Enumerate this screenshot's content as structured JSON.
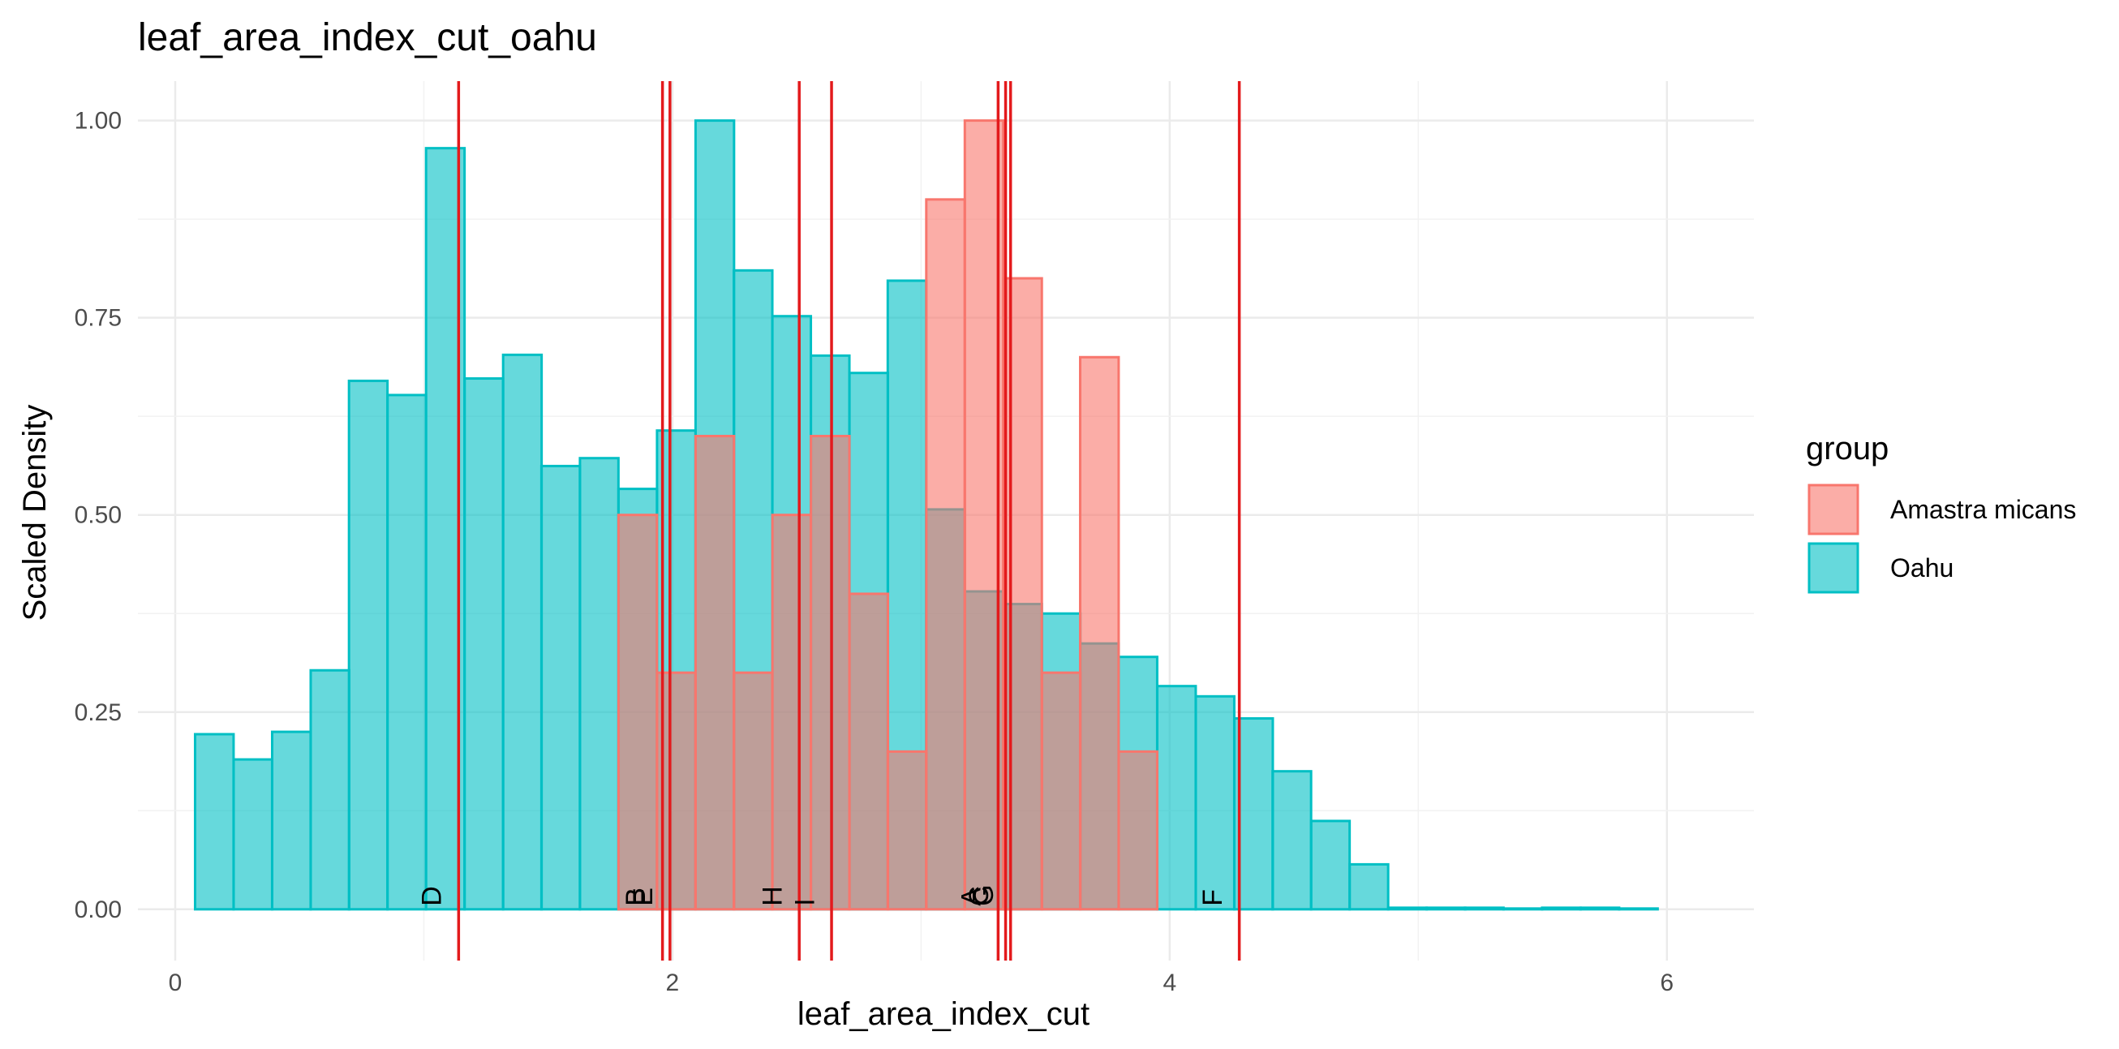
{
  "chart_data": {
    "type": "bar",
    "title": "leaf_area_index_cut_oahu",
    "xlabel": "leaf_area_index_cut",
    "ylabel": "Scaled Density",
    "xlim": [
      -0.15,
      6.35
    ],
    "ylim": [
      -0.065,
      1.05
    ],
    "x_ticks": [
      0,
      2,
      4,
      6
    ],
    "x_tick_labels": [
      "0",
      "2",
      "4",
      "6"
    ],
    "y_ticks": [
      0,
      0.25,
      0.5,
      0.75,
      1.0
    ],
    "y_tick_labels": [
      "0.00",
      "0.25",
      "0.50",
      "0.75",
      "1.00"
    ],
    "grid": true,
    "legend": {
      "title": "group",
      "placement": "right",
      "entries": [
        {
          "label": "Amastra micans",
          "fill": "#F8766D",
          "stroke": "#F8766D"
        },
        {
          "label": "Oahu",
          "fill": "#00BFC4",
          "stroke": "#00BFC4"
        }
      ]
    },
    "bin_width": 0.1548,
    "series": [
      {
        "name": "Oahu",
        "color": "#00BFC4",
        "bins": [
          {
            "x0": 0.08,
            "y": 0.222
          },
          {
            "x0": 0.235,
            "y": 0.19
          },
          {
            "x0": 0.39,
            "y": 0.225
          },
          {
            "x0": 0.545,
            "y": 0.303
          },
          {
            "x0": 0.699,
            "y": 0.67
          },
          {
            "x0": 0.854,
            "y": 0.652
          },
          {
            "x0": 1.009,
            "y": 0.965
          },
          {
            "x0": 1.164,
            "y": 0.673
          },
          {
            "x0": 1.319,
            "y": 0.703
          },
          {
            "x0": 1.473,
            "y": 0.562
          },
          {
            "x0": 1.628,
            "y": 0.572
          },
          {
            "x0": 1.783,
            "y": 0.533
          },
          {
            "x0": 1.938,
            "y": 0.607
          },
          {
            "x0": 2.093,
            "y": 1.0
          },
          {
            "x0": 2.247,
            "y": 0.81
          },
          {
            "x0": 2.402,
            "y": 0.752
          },
          {
            "x0": 2.557,
            "y": 0.702
          },
          {
            "x0": 2.712,
            "y": 0.68
          },
          {
            "x0": 2.866,
            "y": 0.797
          },
          {
            "x0": 3.021,
            "y": 0.507
          },
          {
            "x0": 3.176,
            "y": 0.403
          },
          {
            "x0": 3.331,
            "y": 0.387
          },
          {
            "x0": 3.486,
            "y": 0.375
          },
          {
            "x0": 3.64,
            "y": 0.337
          },
          {
            "x0": 3.795,
            "y": 0.32
          },
          {
            "x0": 3.95,
            "y": 0.283
          },
          {
            "x0": 4.105,
            "y": 0.27
          },
          {
            "x0": 4.26,
            "y": 0.242
          },
          {
            "x0": 4.414,
            "y": 0.175
          },
          {
            "x0": 4.569,
            "y": 0.112
          },
          {
            "x0": 4.724,
            "y": 0.057
          },
          {
            "x0": 4.879,
            "y": 0.002
          },
          {
            "x0": 5.034,
            "y": 0.002
          },
          {
            "x0": 5.188,
            "y": 0.002
          },
          {
            "x0": 5.343,
            "y": 0.001
          },
          {
            "x0": 5.498,
            "y": 0.002
          },
          {
            "x0": 5.653,
            "y": 0.002
          },
          {
            "x0": 5.808,
            "y": 0.001
          }
        ]
      },
      {
        "name": "Amastra micans",
        "color": "#F8766D",
        "bins": [
          {
            "x0": 1.783,
            "y": 0.5
          },
          {
            "x0": 1.938,
            "y": 0.3
          },
          {
            "x0": 2.093,
            "y": 0.6
          },
          {
            "x0": 2.247,
            "y": 0.3
          },
          {
            "x0": 2.402,
            "y": 0.5
          },
          {
            "x0": 2.557,
            "y": 0.6
          },
          {
            "x0": 2.712,
            "y": 0.4
          },
          {
            "x0": 2.866,
            "y": 0.2
          },
          {
            "x0": 3.021,
            "y": 0.9
          },
          {
            "x0": 3.176,
            "y": 1.0
          },
          {
            "x0": 3.331,
            "y": 0.8
          },
          {
            "x0": 3.486,
            "y": 0.3
          },
          {
            "x0": 3.64,
            "y": 0.7
          },
          {
            "x0": 3.795,
            "y": 0.2
          }
        ]
      }
    ],
    "vlines": [
      {
        "x": 1.14,
        "label": "D",
        "label_x": 1.04
      },
      {
        "x": 1.96,
        "label": "B",
        "label_x": 1.86
      },
      {
        "x": 1.99,
        "label": "E",
        "label_x": 1.89
      },
      {
        "x": 2.51,
        "label": "H",
        "label_x": 2.41
      },
      {
        "x": 2.64,
        "label": "I",
        "label_x": 2.54
      },
      {
        "x": 3.31,
        "label": "A",
        "label_x": 3.21
      },
      {
        "x": 3.34,
        "label": "C",
        "label_x": 3.24
      },
      {
        "x": 3.36,
        "label": "G",
        "label_x": 3.26
      },
      {
        "x": 4.28,
        "label": "F",
        "label_x": 4.18
      }
    ],
    "vline_color": "#E31A1C"
  }
}
